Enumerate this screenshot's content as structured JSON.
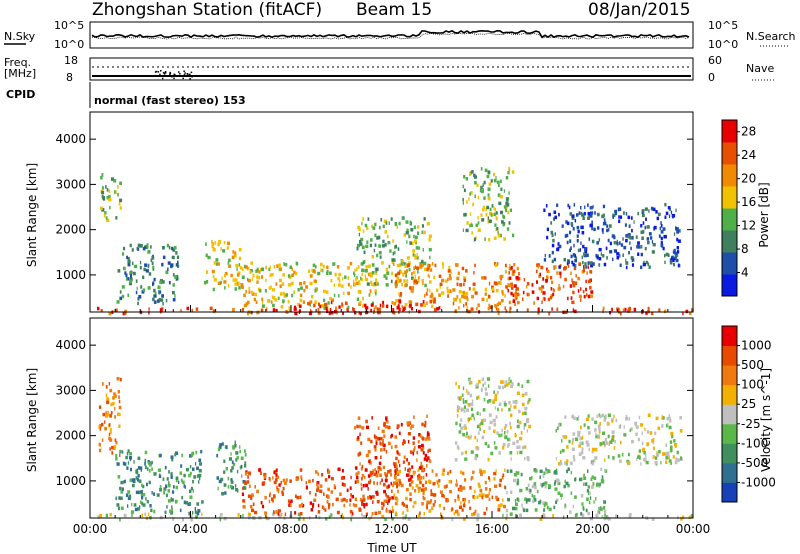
{
  "header": {
    "station": "Zhongshan Station (fitACF)",
    "beam": "Beam 15",
    "date": "08/Jan/2015"
  },
  "top_panels": {
    "nsky_label": "N.Sky",
    "nsearch_label": "N.Search",
    "freq_label_line1": "Freq.",
    "freq_label_line2": "[MHz]",
    "nave_label": "Nave",
    "cpid_label": "CPID",
    "cpid_value": "normal (fast stereo) 153",
    "noise_ticks": [
      "10^5",
      "10^0"
    ],
    "noise_right_ticks": [
      "10^5",
      "10^0"
    ],
    "freq_ticks": [
      "18",
      "8"
    ],
    "nave_ticks": [
      "60",
      "0"
    ]
  },
  "chart_data": [
    {
      "type": "heatmap",
      "name": "power",
      "ylabel": "Slant Range [km]",
      "xlabel": "Time UT",
      "x_ticks": [
        "00:00",
        "04:00",
        "08:00",
        "12:00",
        "16:00",
        "20:00",
        "00:00"
      ],
      "x_range_hours": [
        0,
        24
      ],
      "y_ticks": [
        1000,
        2000,
        3000,
        4000
      ],
      "y_range_km": [
        180,
        4600
      ],
      "colorbar": {
        "label": "Power [dB]",
        "ticks": [
          "4",
          "8",
          "12",
          "16",
          "20",
          "24",
          "28"
        ],
        "range": [
          0,
          30
        ],
        "colors": [
          "#0a1ae0",
          "#1d4fa8",
          "#3f7f5f",
          "#4fb04a",
          "#f2c200",
          "#f08a00",
          "#e85000",
          "#e80000"
        ]
      },
      "regions": [
        {
          "t": [
            0.0,
            24.0
          ],
          "r": [
            180,
            300
          ],
          "level": 6
        },
        {
          "t": [
            0.4,
            1.2
          ],
          "r": [
            2200,
            3300
          ],
          "level": 3
        },
        {
          "t": [
            1.0,
            3.5
          ],
          "r": [
            400,
            1700
          ],
          "level": 2
        },
        {
          "t": [
            4.5,
            6.0
          ],
          "r": [
            700,
            1800
          ],
          "level": 4
        },
        {
          "t": [
            6.0,
            11.5
          ],
          "r": [
            300,
            1300
          ],
          "level": 4
        },
        {
          "t": [
            10.5,
            13.5
          ],
          "r": [
            800,
            2300
          ],
          "level": 3
        },
        {
          "t": [
            12.0,
            17.0
          ],
          "r": [
            300,
            1300
          ],
          "level": 5
        },
        {
          "t": [
            14.8,
            16.8
          ],
          "r": [
            1800,
            3400
          ],
          "level": 3
        },
        {
          "t": [
            16.5,
            20.0
          ],
          "r": [
            400,
            1300
          ],
          "level": 6
        },
        {
          "t": [
            18.0,
            23.5
          ],
          "r": [
            1200,
            2600
          ],
          "level": 1
        },
        {
          "t": [
            8.0,
            14.0
          ],
          "r": [
            180,
            450
          ],
          "level": 7
        }
      ]
    },
    {
      "type": "heatmap",
      "name": "velocity",
      "ylabel": "Slant Range [km]",
      "xlabel": "Time UT",
      "x_ticks": [
        "00:00",
        "04:00",
        "08:00",
        "12:00",
        "16:00",
        "20:00",
        "00:00"
      ],
      "x_range_hours": [
        0,
        24
      ],
      "y_ticks": [
        1000,
        2000,
        3000,
        4000
      ],
      "y_range_km": [
        180,
        4600
      ],
      "colorbar": {
        "label": "Velocity [m s^-1]",
        "ticks": [
          "1000",
          "500",
          "100",
          "25",
          "-25",
          "-100",
          "-500",
          "-1000"
        ],
        "colors": [
          "#1840b8",
          "#2f6f90",
          "#3f8f5f",
          "#5ab84a",
          "#bfbfbf",
          "#f2b000",
          "#f07a10",
          "#e84a00",
          "#e80000"
        ]
      },
      "regions": [
        {
          "t": [
            0.0,
            24.0
          ],
          "r": [
            180,
            300
          ],
          "level": 4
        },
        {
          "t": [
            0.3,
            1.2
          ],
          "r": [
            1600,
            3300
          ],
          "level": 6
        },
        {
          "t": [
            1.0,
            4.5
          ],
          "r": [
            300,
            1700
          ],
          "level": 2
        },
        {
          "t": [
            5.0,
            6.2
          ],
          "r": [
            700,
            1900
          ],
          "level": 2
        },
        {
          "t": [
            6.0,
            12.0
          ],
          "r": [
            300,
            1300
          ],
          "level": 7
        },
        {
          "t": [
            10.5,
            13.5
          ],
          "r": [
            800,
            2500
          ],
          "level": 7
        },
        {
          "t": [
            12.0,
            16.5
          ],
          "r": [
            300,
            1300
          ],
          "level": 6
        },
        {
          "t": [
            14.5,
            17.5
          ],
          "r": [
            1500,
            3300
          ],
          "level": 4
        },
        {
          "t": [
            16.5,
            20.5
          ],
          "r": [
            300,
            1300
          ],
          "level": 3
        },
        {
          "t": [
            18.5,
            23.5
          ],
          "r": [
            1400,
            2500
          ],
          "level": 4
        }
      ]
    }
  ]
}
